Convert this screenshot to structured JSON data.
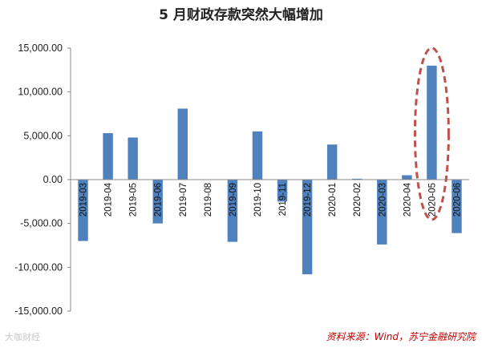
{
  "chart_data": {
    "type": "bar",
    "title": "5 月财政存款突然大幅增加",
    "xlabel": "",
    "ylabel": "",
    "categories": [
      "2019-03",
      "2019-04",
      "2019-05",
      "2019-06",
      "2019-07",
      "2019-08",
      "2019-09",
      "2019-10",
      "2019-11",
      "2019-12",
      "2020-01",
      "2020-02",
      "2020-03",
      "2020-04",
      "2020-05",
      "2020-06"
    ],
    "values": [
      -7000,
      5300,
      4800,
      -5000,
      8100,
      0,
      -7100,
      5500,
      -2500,
      -10800,
      4000,
      100,
      -7400,
      500,
      13000,
      -6100
    ],
    "ylim": [
      -15000,
      15000
    ],
    "yticks": [
      "15,000.00",
      "10,000.00",
      "5,000.00",
      "0.00",
      "-5,000.00",
      "-10,000.00",
      "-15,000.00"
    ],
    "ytick_values": [
      15000,
      10000,
      5000,
      0,
      -5000,
      -10000,
      -15000
    ],
    "bar_color": "#4f81bd",
    "highlight_color": "#c0504d",
    "highlight_category": "2020-05",
    "grid": false,
    "legend": "none"
  },
  "source": "资料来源：Wind，苏宁金融研究院",
  "watermark": "大咖财经"
}
